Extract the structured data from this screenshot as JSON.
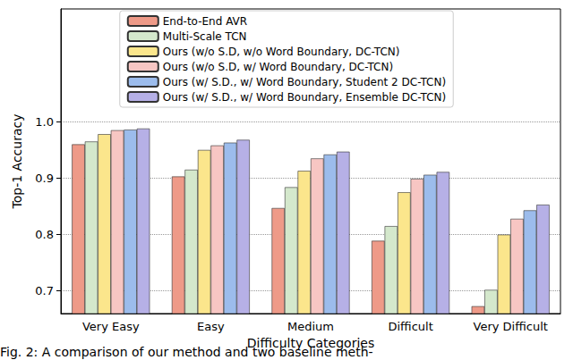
{
  "chart_data": {
    "type": "bar",
    "x_label": "Difficulty Categories",
    "y_label": "Top-1 Accuracy",
    "annotations": [
      "Fig. 2: A comparison of our method and two baseline meth-"
    ],
    "categories": [
      "Very Easy",
      "Easy",
      "Medium",
      "Difficult",
      "Very Difficult"
    ],
    "series": [
      {
        "name": "End-to-End AVR",
        "color": "#ee9a88",
        "values": [
          0.96,
          0.903,
          0.847,
          0.789,
          0.673
        ]
      },
      {
        "name": "Multi-Scale TCN",
        "color": "#d4e8cc",
        "values": [
          0.965,
          0.915,
          0.884,
          0.815,
          0.702
        ]
      },
      {
        "name": "Ours (w/o S.D, w/o Word Boundary, DC-TCN)",
        "color": "#fbe68c",
        "values": [
          0.978,
          0.95,
          0.913,
          0.875,
          0.8
        ]
      },
      {
        "name": "Ours (w/o S.D, w/ Word Boundary, DC-TCN)",
        "color": "#f7c6c3",
        "values": [
          0.985,
          0.958,
          0.935,
          0.899,
          0.828
        ]
      },
      {
        "name": "Ours (w/ S.D., w/ Word Boundary, Student 2 DC-TCN)",
        "color": "#9cbcec",
        "values": [
          0.986,
          0.963,
          0.942,
          0.906,
          0.843
        ]
      },
      {
        "name": "Ours (w/ S.D., w/ Word Boundary, Ensemble DC-TCN)",
        "color": "#b6b0e6",
        "values": [
          0.988,
          0.968,
          0.947,
          0.911,
          0.853
        ]
      }
    ],
    "ylim": [
      0.66,
      1.2
    ],
    "yticks": [
      0.7,
      0.8,
      0.9,
      {
        "value": 1,
        "label": "1.0"
      }
    ],
    "grid": true,
    "legend": "upper center"
  }
}
